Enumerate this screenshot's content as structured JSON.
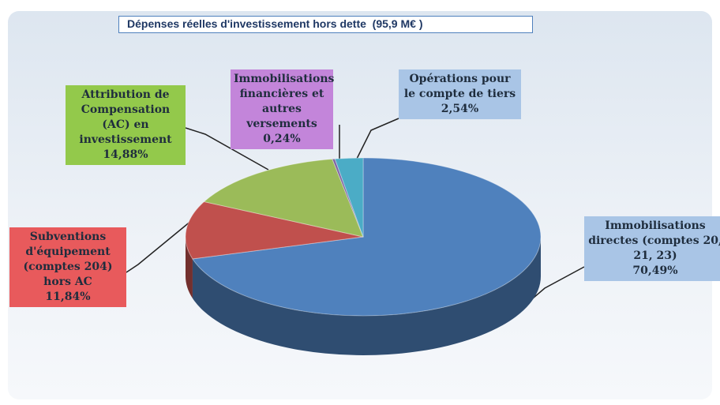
{
  "chart_data": {
    "type": "pie",
    "title": "Dépenses réelles d'investissement hors dette  (95,9 M€ )",
    "categories": [
      "Immobilisations directes (comptes 20, 21, 23)",
      "Subventions d'équipement (comptes 204) hors AC",
      "Attribution de Compensation (AC) en investissement",
      "Immobilisations financières et autres versements",
      "Opérations pour le compte de tiers"
    ],
    "values": [
      70.49,
      11.84,
      14.88,
      0.24,
      2.54
    ],
    "value_labels": [
      "70,49%",
      "11,84%",
      "14,88%",
      "0,24%",
      "2,54%"
    ],
    "colors": [
      "#4f81bd",
      "#c0504d",
      "#9bbb59",
      "#8064a2",
      "#4bacc6"
    ]
  }
}
